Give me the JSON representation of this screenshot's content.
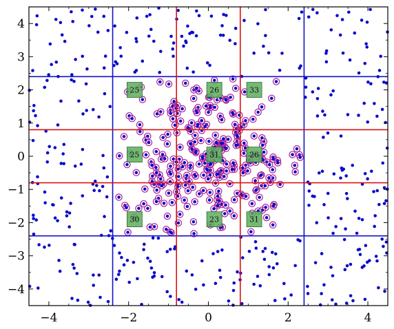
{
  "chart_data": {
    "type": "scatter",
    "title": "",
    "xlabel": "",
    "ylabel": "",
    "xlim": [
      -4.5,
      4.5
    ],
    "ylim": [
      -4.5,
      4.5
    ],
    "x_ticks": [
      {
        "value": -4,
        "label": "−4"
      },
      {
        "value": -2,
        "label": "−2"
      },
      {
        "value": 0,
        "label": "0"
      },
      {
        "value": 2,
        "label": "2"
      },
      {
        "value": 4,
        "label": "4"
      }
    ],
    "y_ticks": [
      {
        "value": 4,
        "label": "4"
      },
      {
        "value": 3,
        "label": "3"
      },
      {
        "value": 2,
        "label": "2"
      },
      {
        "value": 1,
        "label": "1"
      },
      {
        "value": 0,
        "label": "0"
      },
      {
        "value": -1,
        "label": "−1"
      },
      {
        "value": -2,
        "label": "−2"
      },
      {
        "value": -3,
        "label": "−3"
      },
      {
        "value": -4,
        "label": "−4"
      }
    ],
    "grid_outer": {
      "color": "#1010cc",
      "x": [
        -2.4,
        2.4
      ],
      "y": [
        -2.4,
        2.4
      ]
    },
    "grid_inner": {
      "color": "#dd1111",
      "x": [
        -0.8,
        0.8
      ],
      "y": [
        -0.8,
        0.8
      ]
    },
    "point_color": "#0a0acc",
    "ring_color": "#b02a9a",
    "box_color": "#5cad5c",
    "boxes": [
      {
        "x": -1.85,
        "y": 2.0,
        "label": "25"
      },
      {
        "x": 0.15,
        "y": 2.0,
        "label": "26"
      },
      {
        "x": 1.15,
        "y": 2.0,
        "label": "33"
      },
      {
        "x": -1.85,
        "y": 0.05,
        "label": "25"
      },
      {
        "x": 0.15,
        "y": 0.05,
        "label": "31"
      },
      {
        "x": 1.15,
        "y": 0.05,
        "label": "26"
      },
      {
        "x": -1.85,
        "y": -1.9,
        "label": "30"
      },
      {
        "x": 0.15,
        "y": -1.9,
        "label": "23"
      },
      {
        "x": 1.15,
        "y": -1.9,
        "label": "31"
      }
    ]
  }
}
